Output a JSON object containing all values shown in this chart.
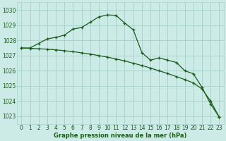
{
  "xlabel": "Graphe pression niveau de la mer (hPa)",
  "bg_color": "#cceae6",
  "grid_color": "#aad4ce",
  "line_color": "#1a5c1a",
  "ylim": [
    1022.5,
    1030.5
  ],
  "xlim": [
    -0.5,
    23.5
  ],
  "yticks": [
    1023,
    1024,
    1025,
    1026,
    1027,
    1028,
    1029,
    1030
  ],
  "xticks": [
    0,
    1,
    2,
    3,
    4,
    5,
    6,
    7,
    8,
    9,
    10,
    11,
    12,
    13,
    14,
    15,
    16,
    17,
    18,
    19,
    20,
    21,
    22,
    23
  ],
  "line1_x": [
    0,
    1,
    2,
    3,
    4,
    5,
    6,
    7,
    8,
    9,
    10,
    11,
    12,
    13,
    14,
    15,
    16,
    17,
    18,
    19,
    20,
    21,
    22,
    23
  ],
  "line1_y": [
    1027.5,
    1027.5,
    1027.8,
    1028.1,
    1028.2,
    1028.35,
    1028.75,
    1028.85,
    1029.2,
    1029.55,
    1029.68,
    1029.65,
    1029.15,
    1028.7,
    1027.2,
    1026.7,
    1026.85,
    1026.7,
    1026.55,
    1026.0,
    1025.8,
    1024.9,
    1023.8,
    1022.95
  ],
  "line2_x": [
    0,
    1,
    2,
    3,
    4,
    5,
    6,
    7,
    8,
    9,
    10,
    11,
    12,
    13,
    14,
    15,
    16,
    17,
    18,
    19,
    20,
    21,
    22,
    23
  ],
  "line2_y": [
    1027.5,
    1027.48,
    1027.45,
    1027.42,
    1027.38,
    1027.32,
    1027.26,
    1027.18,
    1027.1,
    1027.0,
    1026.9,
    1026.78,
    1026.65,
    1026.5,
    1026.35,
    1026.18,
    1026.0,
    1025.82,
    1025.62,
    1025.42,
    1025.2,
    1024.8,
    1024.0,
    1022.95
  ],
  "tick_fontsize": 5.5,
  "xlabel_fontsize": 6.0
}
